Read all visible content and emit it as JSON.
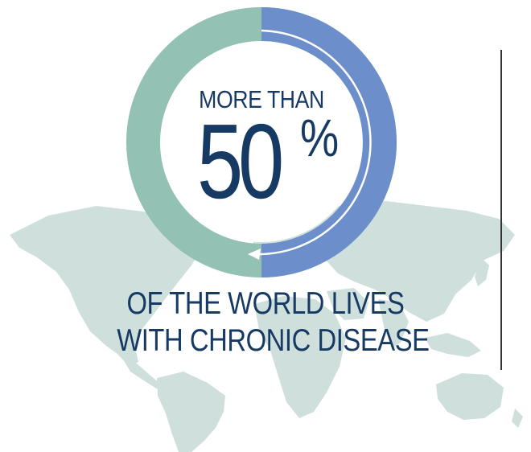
{
  "headline": {
    "prefix": "MORE THAN",
    "number": "50",
    "percent_sign": "%"
  },
  "caption": {
    "line1": "OF THE WORLD LIVES",
    "line2": "WITH CHRONIC DISEASE"
  },
  "ring": {
    "highlighted_fraction": 0.5
  },
  "colors": {
    "text": "#163a63",
    "ring_blue": "#6c8fcb",
    "ring_green": "#93c1b3",
    "map": "#cfe0dc",
    "divider": "#333333"
  }
}
